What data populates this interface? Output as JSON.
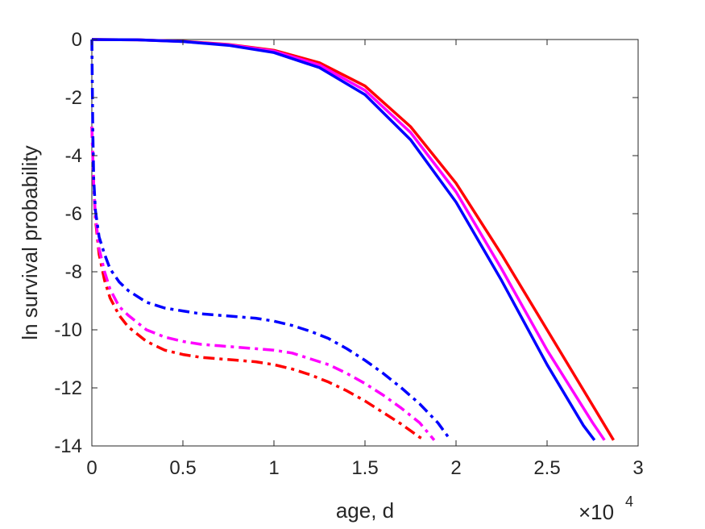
{
  "chart_data": {
    "type": "line",
    "xlabel": "age, d",
    "ylabel": "ln survival probability",
    "x_multiplier_label": "×10",
    "x_multiplier_exponent": "4",
    "xlim": [
      0,
      30000
    ],
    "ylim": [
      -14,
      0
    ],
    "xticks": [
      0,
      5000,
      10000,
      15000,
      20000,
      25000,
      30000
    ],
    "xtick_labels": [
      "0",
      "0.5",
      "1",
      "1.5",
      "2",
      "2.5",
      "3"
    ],
    "yticks": [
      0,
      -2,
      -4,
      -6,
      -8,
      -10,
      -12,
      -14
    ],
    "ytick_labels": [
      "0",
      "-2",
      "-4",
      "-6",
      "-8",
      "-10",
      "-12",
      "-14"
    ],
    "grid": false,
    "series": [
      {
        "color": "#ff0000",
        "style": "solid",
        "x": [
          0,
          2500,
          5000,
          7500,
          10000,
          12500,
          15000,
          17500,
          20000,
          22500,
          25000,
          27500,
          28650
        ],
        "y": [
          0,
          -0.01,
          -0.06,
          -0.17,
          -0.37,
          -0.8,
          -1.6,
          -3.0,
          -4.95,
          -7.4,
          -10.0,
          -12.6,
          -13.8
        ]
      },
      {
        "color": "#ff00ff",
        "style": "solid",
        "x": [
          0,
          2500,
          5000,
          7500,
          10000,
          12500,
          15000,
          17500,
          20000,
          22500,
          25000,
          27500,
          28150
        ],
        "y": [
          0,
          -0.01,
          -0.07,
          -0.18,
          -0.4,
          -0.88,
          -1.75,
          -3.2,
          -5.25,
          -7.9,
          -10.7,
          -13.2,
          -13.8
        ]
      },
      {
        "color": "#0000ff",
        "style": "solid",
        "x": [
          0,
          2500,
          5000,
          7500,
          10000,
          12500,
          15000,
          17500,
          20000,
          22500,
          25000,
          27000,
          27600
        ],
        "y": [
          0,
          -0.01,
          -0.07,
          -0.2,
          -0.45,
          -0.97,
          -1.9,
          -3.45,
          -5.6,
          -8.3,
          -11.2,
          -13.3,
          -13.8
        ]
      },
      {
        "color": "#ff0000",
        "style": "dashdot",
        "x": [
          0,
          100,
          200,
          400,
          700,
          1000,
          1500,
          2000,
          3000,
          4000,
          5000,
          6000,
          7000,
          8000,
          9000,
          10000,
          11000,
          12000,
          13000,
          14000,
          15000,
          16000,
          17000,
          18000,
          18300
        ],
        "y": [
          -3.0,
          -5.0,
          -6.2,
          -7.4,
          -8.3,
          -8.9,
          -9.5,
          -9.9,
          -10.4,
          -10.7,
          -10.85,
          -10.95,
          -11.0,
          -11.05,
          -11.1,
          -11.2,
          -11.35,
          -11.55,
          -11.8,
          -12.1,
          -12.45,
          -12.85,
          -13.25,
          -13.7,
          -13.8
        ]
      },
      {
        "color": "#ff00ff",
        "style": "dashdot",
        "x": [
          0,
          100,
          200,
          400,
          700,
          1000,
          1500,
          2000,
          3000,
          4000,
          5000,
          6000,
          7000,
          8000,
          9000,
          10000,
          11000,
          12000,
          13000,
          14000,
          15000,
          16000,
          17000,
          18000,
          18800
        ],
        "y": [
          -3.0,
          -5.0,
          -6.1,
          -7.2,
          -8.0,
          -8.6,
          -9.2,
          -9.5,
          -10.0,
          -10.25,
          -10.4,
          -10.5,
          -10.55,
          -10.6,
          -10.65,
          -10.7,
          -10.8,
          -11.0,
          -11.2,
          -11.5,
          -11.85,
          -12.25,
          -12.7,
          -13.2,
          -13.8
        ]
      },
      {
        "color": "#0000ff",
        "style": "dashdot",
        "x": [
          0,
          50,
          100,
          200,
          400,
          700,
          1000,
          1500,
          2000,
          3000,
          4000,
          5000,
          6000,
          7000,
          8000,
          9000,
          10000,
          11000,
          12000,
          13000,
          14000,
          15000,
          16000,
          17000,
          18000,
          19000,
          19700
        ],
        "y": [
          0,
          -3.0,
          -4.8,
          -5.9,
          -6.8,
          -7.4,
          -7.9,
          -8.35,
          -8.65,
          -9.05,
          -9.25,
          -9.35,
          -9.45,
          -9.5,
          -9.55,
          -9.6,
          -9.7,
          -9.85,
          -10.05,
          -10.3,
          -10.65,
          -11.05,
          -11.5,
          -12.0,
          -12.55,
          -13.2,
          -13.8
        ]
      }
    ]
  }
}
